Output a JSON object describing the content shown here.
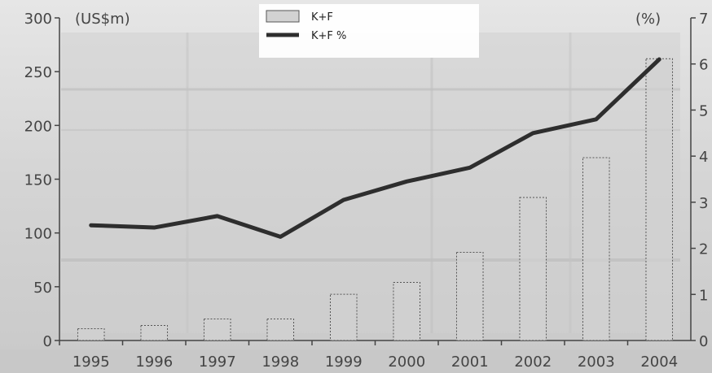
{
  "chart_data": {
    "type": "bar",
    "categories": [
      "1995",
      "1996",
      "1997",
      "1998",
      "1999",
      "2000",
      "2001",
      "2002",
      "2003",
      "2004"
    ],
    "series": [
      {
        "name": "K+F",
        "kind": "bar",
        "axis": "left",
        "values": [
          11,
          14,
          20,
          20,
          43,
          54,
          82,
          133,
          170,
          262
        ]
      },
      {
        "name": "K+F %",
        "kind": "line",
        "axis": "right",
        "values": [
          2.5,
          2.45,
          2.7,
          2.25,
          3.05,
          3.45,
          3.75,
          4.5,
          4.8,
          6.1
        ]
      }
    ],
    "left_axis": {
      "unit_label": "(US$m)",
      "ylim": [
        0,
        300
      ],
      "ticks": [
        0,
        50,
        100,
        150,
        200,
        250,
        300
      ]
    },
    "right_axis": {
      "unit_label": "(%)",
      "ylim": [
        0,
        7
      ],
      "ticks": [
        0,
        1,
        2,
        3,
        4,
        5,
        6,
        7
      ]
    },
    "legend": {
      "placement": "top-center",
      "items": [
        "K+F",
        "K+F %"
      ]
    },
    "grid": false,
    "colors": {
      "bar_fill": "#d2d2d2",
      "bar_stroke": "#555555",
      "line": "#2e2e2e",
      "background": "#d6d6d6"
    }
  }
}
